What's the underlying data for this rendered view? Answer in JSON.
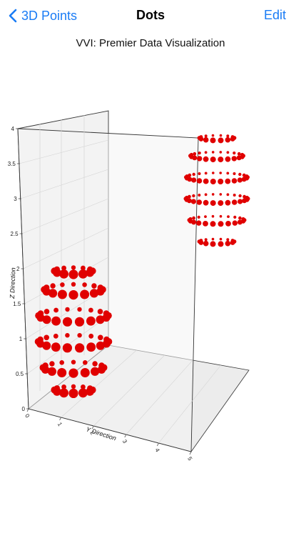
{
  "nav": {
    "back_label": "3D Points",
    "title": "Dots",
    "edit_label": "Edit"
  },
  "subtitle": "VVI: Premier Data Visualization",
  "colors": {
    "accent": "#1a7cf5",
    "points": "#e00000",
    "pane": "#f2f2f2",
    "grid": "#d4d4d4"
  },
  "chart_data": {
    "type": "scatter",
    "dimensions": 3,
    "zlabel": "Z Direction",
    "ylabel": "Y Direction",
    "xlabel": "",
    "z_ticks": [
      "0",
      "0.5",
      "1",
      "1.5",
      "2",
      "2.5",
      "3",
      "3.5",
      "4"
    ],
    "y_ticks": [
      "0",
      "1",
      "2",
      "3",
      "4",
      "5"
    ],
    "zlim": [
      0,
      4
    ],
    "ylim": [
      0,
      5
    ],
    "grid": true,
    "series": [
      {
        "shape": "ellipsoid point cloud",
        "rings": [
          {
            "z": 0.35,
            "count": 12
          },
          {
            "z": 0.65,
            "count": 16
          },
          {
            "z": 1.0,
            "count": 18
          },
          {
            "z": 1.35,
            "count": 18
          },
          {
            "z": 1.7,
            "count": 16
          },
          {
            "z": 1.95,
            "count": 12
          }
        ]
      },
      {
        "shape": "ellipsoid point cloud",
        "rings": [
          {
            "z": 2.45,
            "count": 14
          },
          {
            "z": 2.75,
            "count": 22
          },
          {
            "z": 3.05,
            "count": 26
          },
          {
            "z": 3.35,
            "count": 26
          },
          {
            "z": 3.65,
            "count": 22
          },
          {
            "z": 3.9,
            "count": 14
          }
        ]
      }
    ]
  }
}
